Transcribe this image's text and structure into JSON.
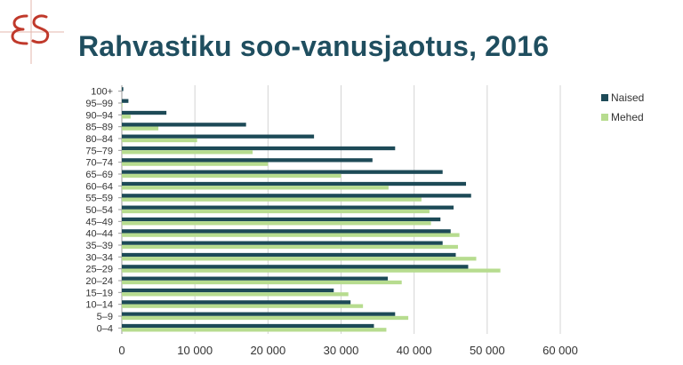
{
  "slide": {
    "title": "Rahvastiku soo-vanusjaotus, 2016",
    "logo_text": "ES",
    "logo_color": "#c0392b"
  },
  "legend": {
    "items": [
      {
        "label": "Naised",
        "color": "#1d4a57"
      },
      {
        "label": "Mehed",
        "color": "#b7dc8f"
      }
    ],
    "placement": "right"
  },
  "chart_data": {
    "type": "bar",
    "orientation": "horizontal",
    "categories": [
      "100+",
      "95–99",
      "90–94",
      "85–89",
      "80–84",
      "75–79",
      "70–74",
      "65–69",
      "60–64",
      "55–59",
      "50–54",
      "45–49",
      "40–44",
      "35–39",
      "30–34",
      "25–29",
      "20–24",
      "15–19",
      "10–14",
      "5–9",
      "0–4"
    ],
    "series": [
      {
        "name": "Naised",
        "color": "#1d4a57",
        "values": [
          200,
          900,
          6100,
          17000,
          26300,
          37400,
          34300,
          43900,
          47100,
          47800,
          45400,
          43600,
          45000,
          43900,
          45700,
          47400,
          36400,
          29000,
          31300,
          37400,
          34500
        ]
      },
      {
        "name": "Mehed",
        "color": "#b7dc8f",
        "values": [
          0,
          100,
          1200,
          5000,
          10300,
          17900,
          20000,
          30000,
          36500,
          41000,
          42100,
          42300,
          46200,
          46000,
          48500,
          51800,
          38300,
          31000,
          33000,
          39200,
          36200
        ]
      }
    ],
    "xlim": [
      0,
      60000
    ],
    "xticks": [
      "0",
      "10 000",
      "20 000",
      "30 000",
      "40 000",
      "50 000",
      "60 000"
    ],
    "grid": true,
    "legend": "right"
  }
}
